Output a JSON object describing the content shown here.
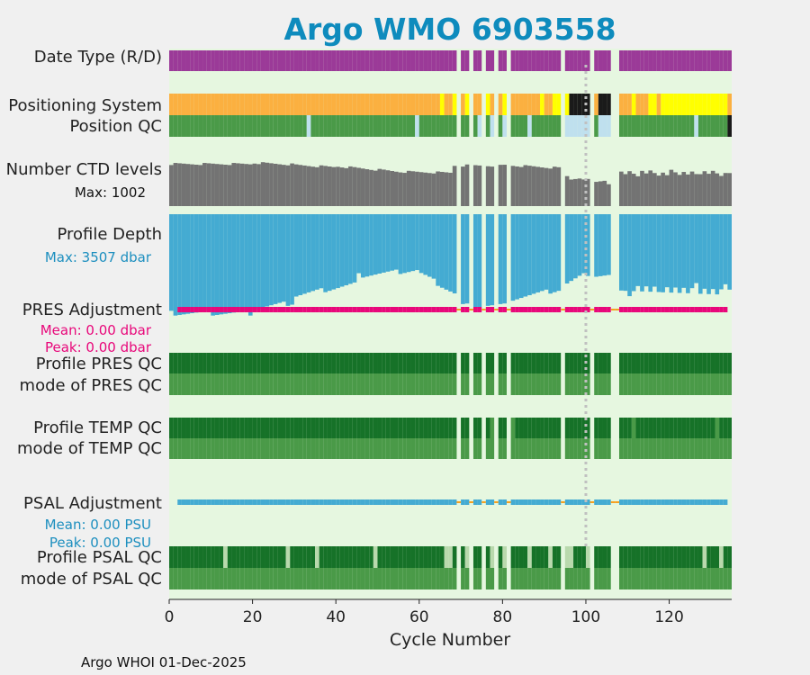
{
  "chart_data": {
    "type": "table",
    "title": "Argo WMO 6903558",
    "xlabel": "Cycle Number",
    "xlim": [
      0,
      135
    ],
    "xticks": [
      0,
      20,
      40,
      60,
      80,
      100,
      120
    ],
    "grid": false,
    "rows": [
      {
        "label": "Date Type (R/D)"
      },
      {
        "label": "Positioning System"
      },
      {
        "label": "Position QC"
      },
      {
        "label": "Number CTD levels",
        "note": "Max: 1002"
      },
      {
        "label": "Profile Depth",
        "note": "Max: 3507 dbar"
      },
      {
        "label": "PRES Adjustment",
        "note": "Mean: 0.00 dbar",
        "note2": "Peak: 0.00 dbar"
      },
      {
        "label": "Profile PRES QC"
      },
      {
        "label": "mode of PRES QC"
      },
      {
        "label": "Profile TEMP QC"
      },
      {
        "label": "mode of TEMP QC"
      },
      {
        "label": "PSAL Adjustment",
        "note": "Mean: 0.00 PSU",
        "note2": "Peak: 0.00 PSU"
      },
      {
        "label": "Profile PSAL QC"
      },
      {
        "label": "mode of PSAL QC"
      }
    ],
    "gap_ranges": [
      [
        69,
        70
      ],
      [
        72,
        73
      ],
      [
        75,
        76
      ],
      [
        78,
        79
      ],
      [
        81,
        82
      ],
      [
        94,
        95
      ],
      [
        101,
        102
      ],
      [
        106,
        107
      ],
      [
        107,
        108
      ]
    ],
    "reference_cycle": 100,
    "max_ctd_levels": 1002,
    "max_depth_dbar": 3507,
    "pres_adjustment_mean_dbar": 0.0,
    "pres_adjustment_peak_dbar": 0.0,
    "psal_adjustment_mean_psu": 0.0,
    "psal_adjustment_peak_psu": 0.0,
    "colors": {
      "plot_bg": "#e6f7e0",
      "figure_bg": "#f0f0f0",
      "date_type": "#9b3a98",
      "pos_orange": "#fbb040",
      "pos_yellow": "#ffff00",
      "pos_black": "#1a1a1a",
      "qc_mid_green": "#4a9a48",
      "qc_dark_green": "#167228",
      "qc_light_blue": "#bfe0ee",
      "qc_pale_green": "#b9d9ad",
      "ctd_gray": "#737373",
      "depth_blue": "#44abd2",
      "pres_magenta": "#e8077a",
      "psal_blue": "#44abd2",
      "adj_orange": "#f6a020",
      "ref_line": "#c0c0c0"
    },
    "footer": "Argo WHOI 01-Dec-2025"
  }
}
